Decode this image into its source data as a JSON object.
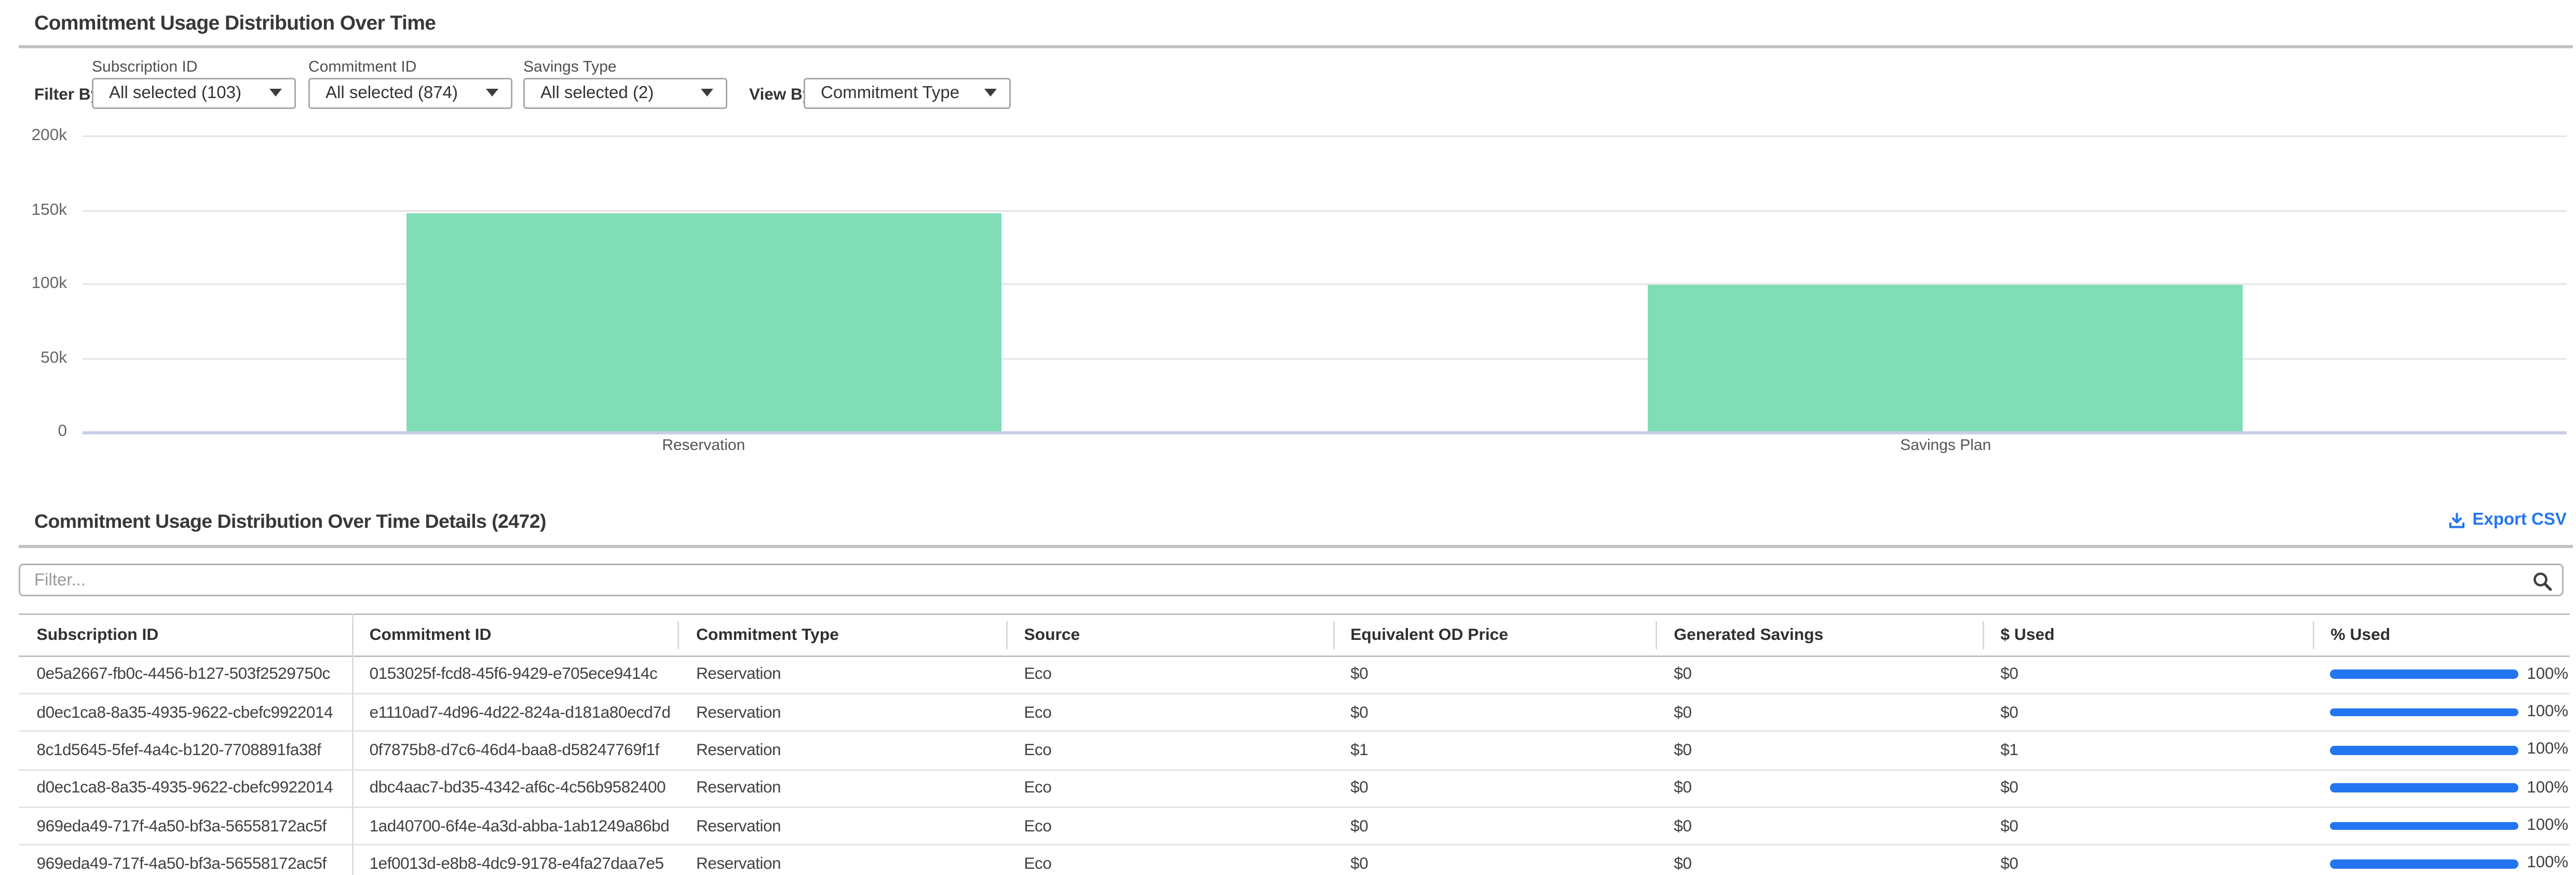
{
  "colors": {
    "accent_blue": "#2376f0",
    "bar_green": "#80ddb6"
  },
  "header": {
    "title": "Commitment Usage Distribution Over Time"
  },
  "filter_bar": {
    "filter_by_label": "Filter By:",
    "view_by_label": "View By:",
    "dropdowns": [
      {
        "label": "Subscription ID",
        "value": "All selected (103)"
      },
      {
        "label": "Commitment ID",
        "value": "All selected (874)"
      },
      {
        "label": "Savings Type",
        "value": "All selected (2)"
      }
    ],
    "view_by_value": "Commitment Type"
  },
  "chart_data": {
    "type": "bar",
    "categories": [
      "Reservation",
      "Savings Plan"
    ],
    "values": [
      147200,
      98900
    ],
    "title": "",
    "xlabel": "",
    "ylabel": "",
    "ylim": [
      0,
      200000
    ],
    "yticks": [
      {
        "value": 200000,
        "label": "200k"
      },
      {
        "value": 150000,
        "label": "150k"
      },
      {
        "value": 100000,
        "label": "100k"
      },
      {
        "value": 50000,
        "label": "50k"
      },
      {
        "value": 0,
        "label": "0"
      }
    ],
    "grid": true,
    "legend": "none",
    "bar_color": "#80ddb6"
  },
  "details": {
    "heading": "Commitment Usage Distribution Over Time Details (2472)",
    "export_label": "Export CSV",
    "filter_placeholder": "Filter..."
  },
  "table": {
    "columns": [
      "Subscription ID",
      "Commitment ID",
      "Commitment Type",
      "Source",
      "Equivalent OD Price",
      "Generated Savings",
      "$ Used",
      "% Used"
    ],
    "rows": [
      {
        "subscription_id": "0e5a2667-fb0c-4456-b127-503f2529750c",
        "commitment_id": "0153025f-fcd8-45f6-9429-e705ece9414c",
        "commitment_type": "Reservation",
        "source": "Eco",
        "equivalent_od_price": "$0",
        "generated_savings": "$0",
        "used": "$0",
        "pct_used": "100%",
        "pct_value": 100
      },
      {
        "subscription_id": "d0ec1ca8-8a35-4935-9622-cbefc9922014",
        "commitment_id": "e1110ad7-4d96-4d22-824a-d181a80ecd7d",
        "commitment_type": "Reservation",
        "source": "Eco",
        "equivalent_od_price": "$0",
        "generated_savings": "$0",
        "used": "$0",
        "pct_used": "100%",
        "pct_value": 100
      },
      {
        "subscription_id": "8c1d5645-5fef-4a4c-b120-7708891fa38f",
        "commitment_id": "0f7875b8-d7c6-46d4-baa8-d58247769f1f",
        "commitment_type": "Reservation",
        "source": "Eco",
        "equivalent_od_price": "$1",
        "generated_savings": "$0",
        "used": "$1",
        "pct_used": "100%",
        "pct_value": 100
      },
      {
        "subscription_id": "d0ec1ca8-8a35-4935-9622-cbefc9922014",
        "commitment_id": "dbc4aac7-bd35-4342-af6c-4c56b9582400",
        "commitment_type": "Reservation",
        "source": "Eco",
        "equivalent_od_price": "$0",
        "generated_savings": "$0",
        "used": "$0",
        "pct_used": "100%",
        "pct_value": 100
      },
      {
        "subscription_id": "969eda49-717f-4a50-bf3a-56558172ac5f",
        "commitment_id": "1ad40700-6f4e-4a3d-abba-1ab1249a86bd",
        "commitment_type": "Reservation",
        "source": "Eco",
        "equivalent_od_price": "$0",
        "generated_savings": "$0",
        "used": "$0",
        "pct_used": "100%",
        "pct_value": 100
      },
      {
        "subscription_id": "969eda49-717f-4a50-bf3a-56558172ac5f",
        "commitment_id": "1ef0013d-e8b8-4dc9-9178-e4fa27daa7e5",
        "commitment_type": "Reservation",
        "source": "Eco",
        "equivalent_od_price": "$0",
        "generated_savings": "$0",
        "used": "$0",
        "pct_used": "100%",
        "pct_value": 100
      }
    ]
  }
}
